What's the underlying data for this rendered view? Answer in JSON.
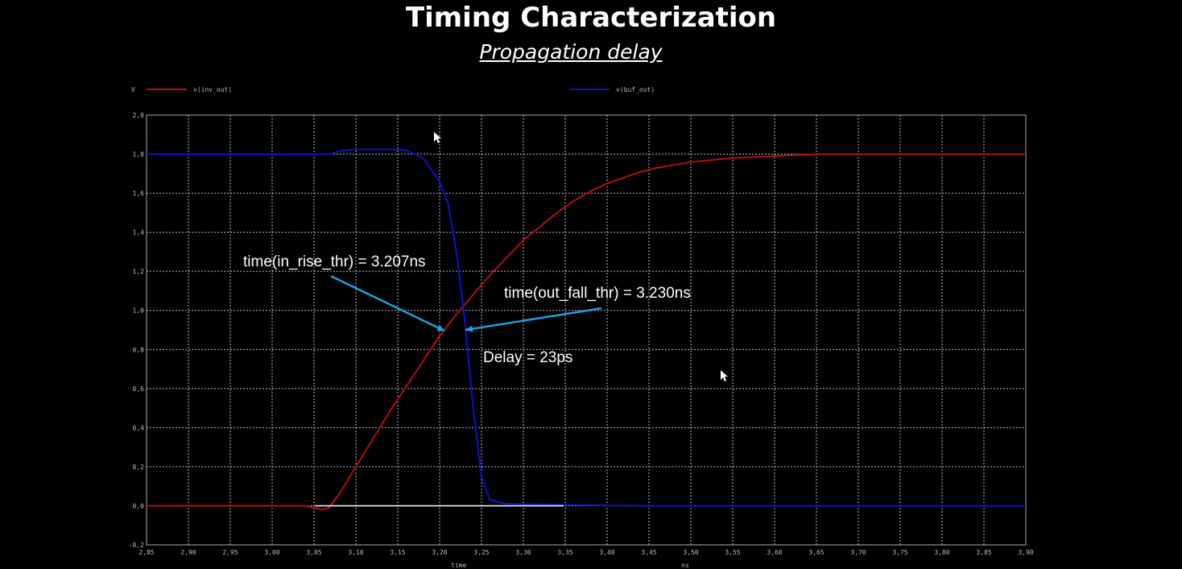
{
  "header": {
    "title": "Timing Characterization",
    "subtitle": "Propagation delay"
  },
  "chart_data": {
    "type": "line",
    "ylabel": "V",
    "xlabel": "time",
    "xunit": "ns",
    "xlim": [
      2.85,
      3.9
    ],
    "ylim": [
      -0.2,
      2.0
    ],
    "grid": true,
    "legend": "top",
    "x_ticks": [
      "2,85",
      "2,90",
      "2,95",
      "3,00",
      "3,05",
      "3,10",
      "3,15",
      "3,20",
      "3,25",
      "3,30",
      "3,35",
      "3,40",
      "3,45",
      "3,50",
      "3,55",
      "3,60",
      "3,65",
      "3,70",
      "3,75",
      "3,80",
      "3,85",
      "3,90"
    ],
    "y_ticks": [
      "-0,2",
      "0,0",
      "0,2",
      "0,4",
      "0,6",
      "0,8",
      "1,0",
      "1,2",
      "1,4",
      "1,6",
      "1,8",
      "2,0"
    ],
    "series": [
      {
        "name": "v(inv_out)",
        "color": "#b01010",
        "points": [
          [
            2.85,
            0.0
          ],
          [
            3.04,
            0.0
          ],
          [
            3.05,
            -0.01
          ],
          [
            3.06,
            -0.02
          ],
          [
            3.068,
            -0.01
          ],
          [
            3.08,
            0.06
          ],
          [
            3.1,
            0.2
          ],
          [
            3.12,
            0.34
          ],
          [
            3.14,
            0.48
          ],
          [
            3.16,
            0.61
          ],
          [
            3.18,
            0.74
          ],
          [
            3.2,
            0.87
          ],
          [
            3.22,
            0.98
          ],
          [
            3.24,
            1.08
          ],
          [
            3.26,
            1.18
          ],
          [
            3.28,
            1.27
          ],
          [
            3.3,
            1.36
          ],
          [
            3.32,
            1.43
          ],
          [
            3.34,
            1.5
          ],
          [
            3.36,
            1.56
          ],
          [
            3.38,
            1.61
          ],
          [
            3.4,
            1.65
          ],
          [
            3.42,
            1.68
          ],
          [
            3.44,
            1.71
          ],
          [
            3.46,
            1.73
          ],
          [
            3.5,
            1.76
          ],
          [
            3.55,
            1.78
          ],
          [
            3.6,
            1.79
          ],
          [
            3.65,
            1.8
          ],
          [
            3.7,
            1.8
          ],
          [
            3.9,
            1.8
          ]
        ]
      },
      {
        "name": "v(buf_out)",
        "color": "#1010c8",
        "points": [
          [
            2.85,
            1.8
          ],
          [
            3.05,
            1.8
          ],
          [
            3.07,
            1.8
          ],
          [
            3.08,
            1.815
          ],
          [
            3.1,
            1.825
          ],
          [
            3.14,
            1.825
          ],
          [
            3.16,
            1.82
          ],
          [
            3.18,
            1.78
          ],
          [
            3.2,
            1.66
          ],
          [
            3.21,
            1.55
          ],
          [
            3.22,
            1.3
          ],
          [
            3.23,
            0.95
          ],
          [
            3.24,
            0.5
          ],
          [
            3.25,
            0.15
          ],
          [
            3.26,
            0.03
          ],
          [
            3.28,
            0.01
          ],
          [
            3.35,
            0.005
          ],
          [
            3.45,
            0.0
          ],
          [
            3.9,
            0.0
          ]
        ]
      }
    ],
    "annotations": [
      {
        "text": "time(in_rise_thr) = 3.207ns"
      },
      {
        "text": "time(out_fall_thr) = 3.230ns"
      },
      {
        "text": "Delay = 23ps"
      }
    ]
  }
}
